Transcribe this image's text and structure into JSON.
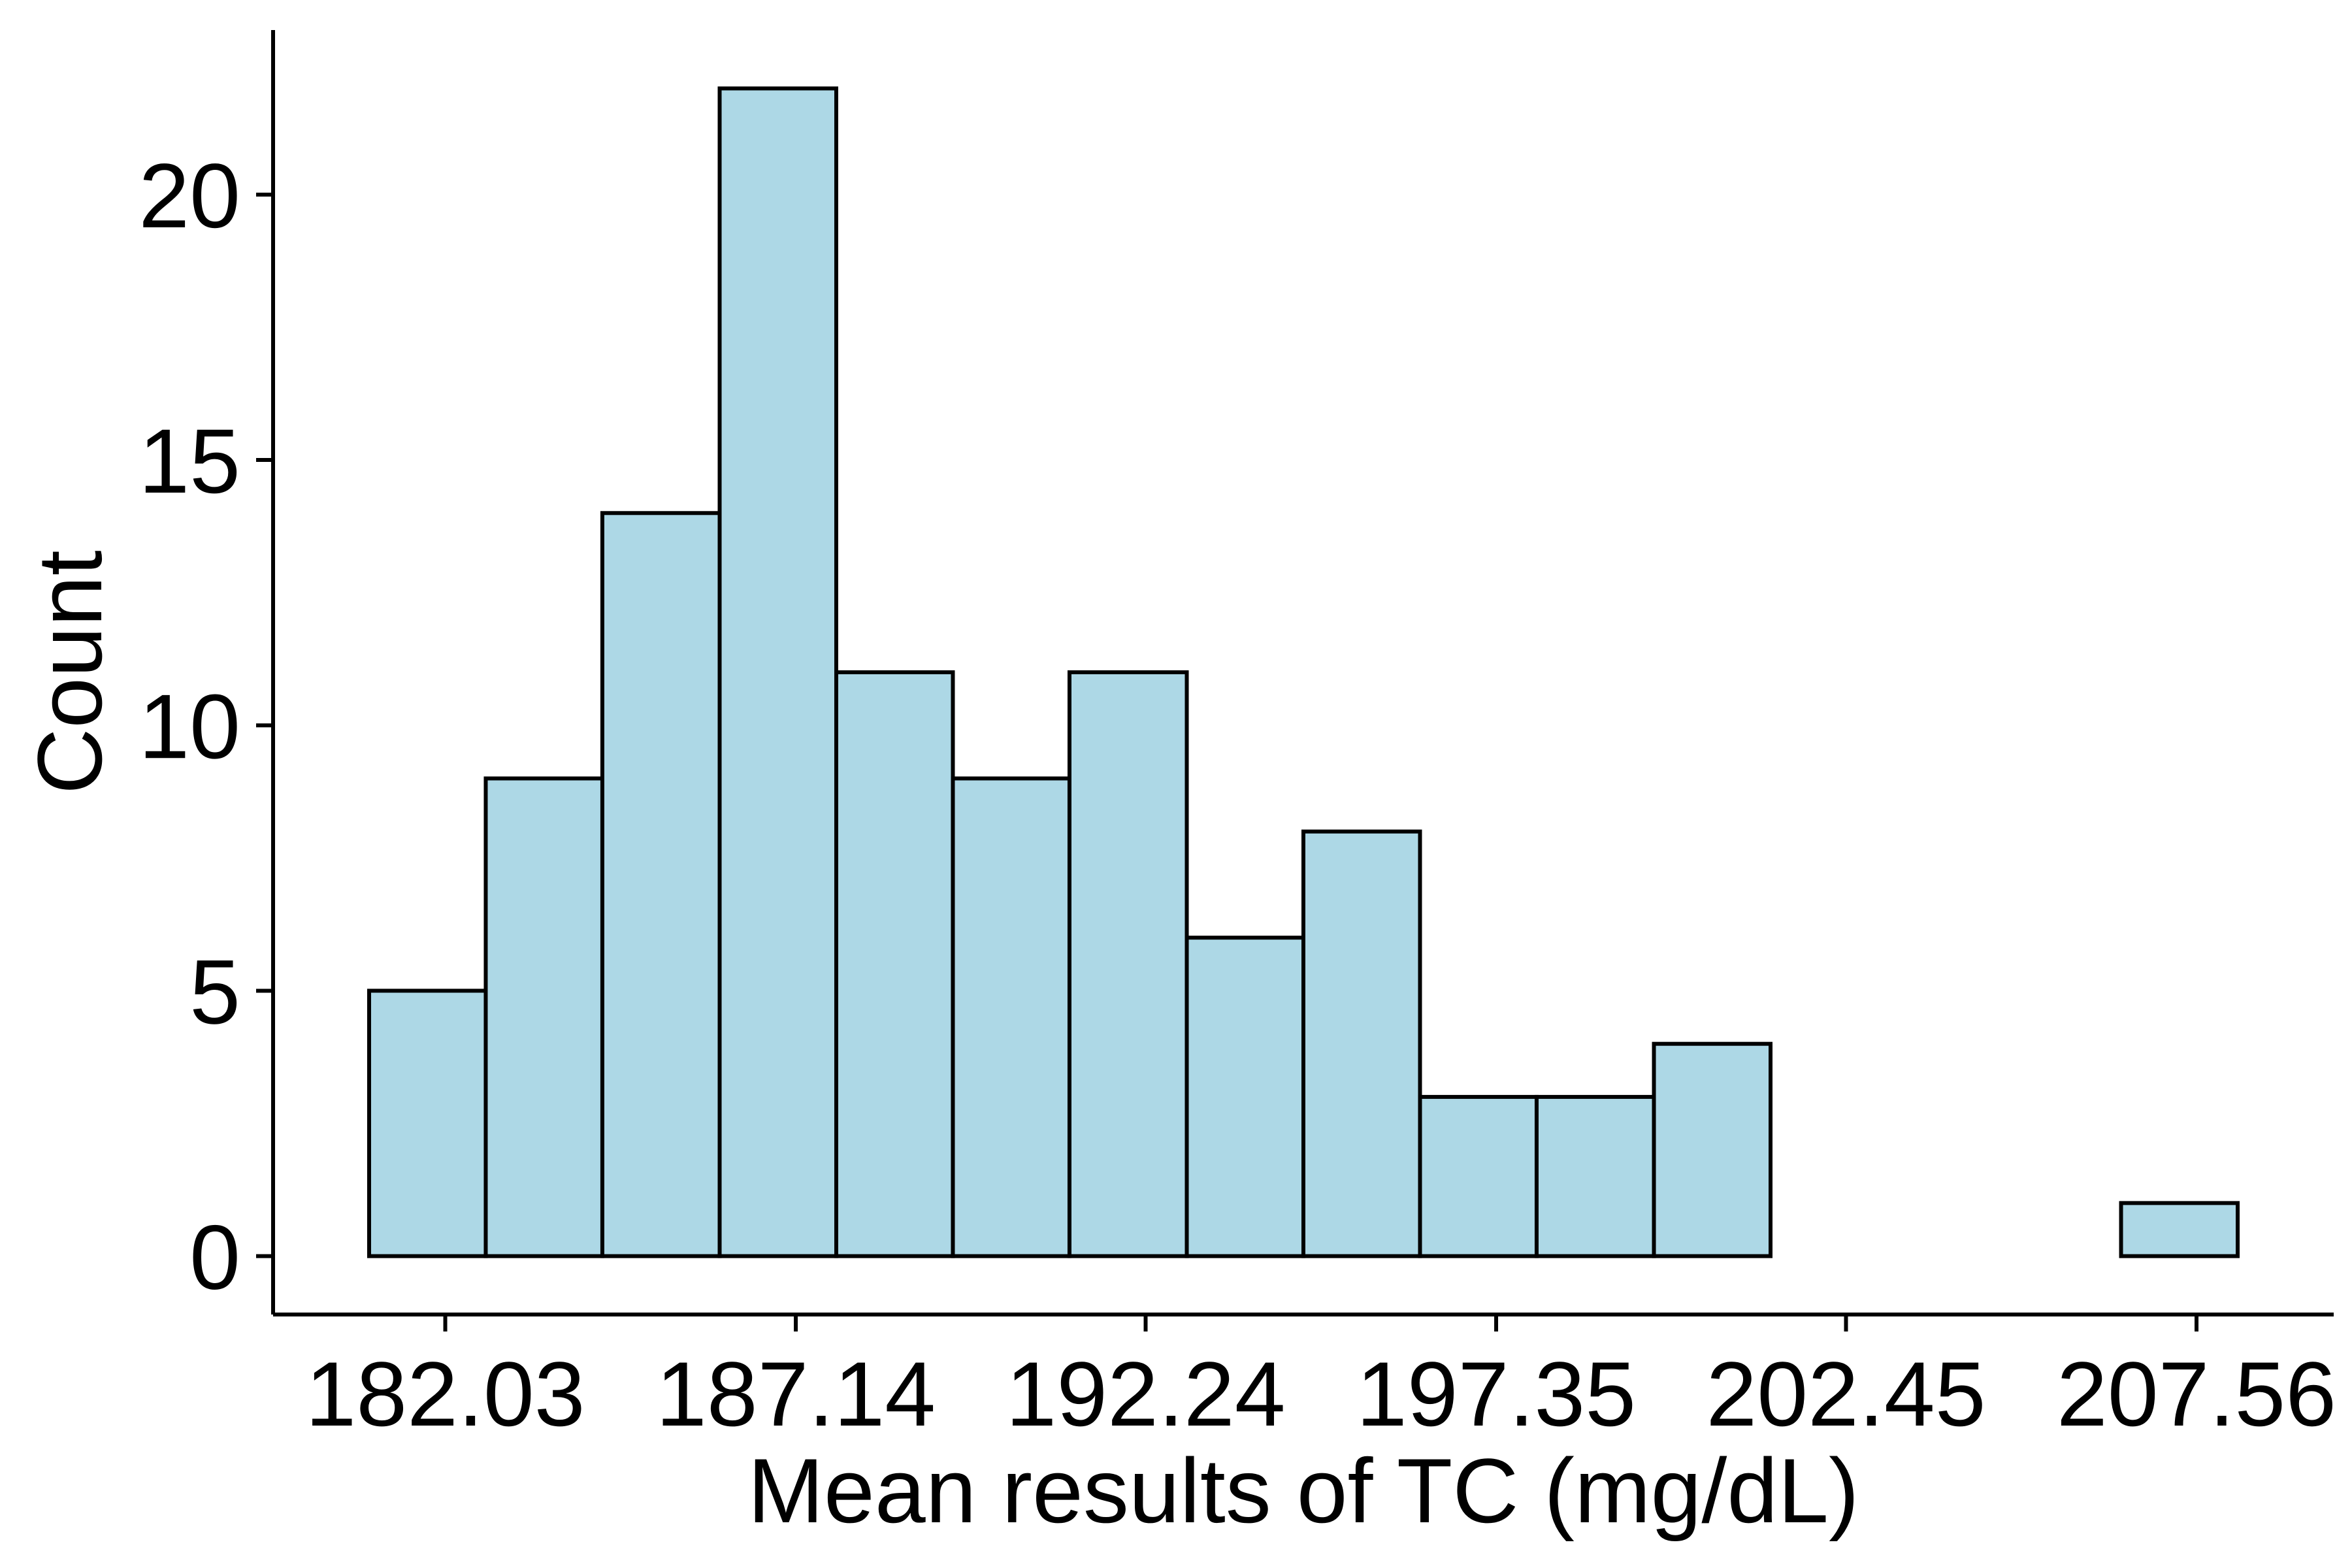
{
  "chart_data": {
    "type": "bar",
    "subtype": "histogram",
    "xlabel": "Mean results of TC (mg/dL)",
    "ylabel": "Count",
    "bin_width": 1.7024,
    "bins": [
      {
        "start": 180.92,
        "end": 182.62,
        "count": 5
      },
      {
        "start": 182.62,
        "end": 184.32,
        "count": 9
      },
      {
        "start": 184.32,
        "end": 186.03,
        "count": 14
      },
      {
        "start": 186.03,
        "end": 187.73,
        "count": 22
      },
      {
        "start": 187.73,
        "end": 189.43,
        "count": 11
      },
      {
        "start": 189.43,
        "end": 191.13,
        "count": 9
      },
      {
        "start": 191.13,
        "end": 192.84,
        "count": 11
      },
      {
        "start": 192.84,
        "end": 194.54,
        "count": 6
      },
      {
        "start": 194.54,
        "end": 196.24,
        "count": 8
      },
      {
        "start": 196.24,
        "end": 197.94,
        "count": 3
      },
      {
        "start": 197.94,
        "end": 199.65,
        "count": 3
      },
      {
        "start": 199.65,
        "end": 201.35,
        "count": 4
      },
      {
        "start": 201.35,
        "end": 203.05,
        "count": 0
      },
      {
        "start": 203.05,
        "end": 204.75,
        "count": 0
      },
      {
        "start": 204.75,
        "end": 206.46,
        "count": 0
      },
      {
        "start": 206.46,
        "end": 208.16,
        "count": 1
      }
    ],
    "x_ticks": [
      182.03,
      187.14,
      192.24,
      197.35,
      202.45,
      207.56
    ],
    "x_tick_labels": [
      "182.03",
      "187.14",
      "192.24",
      "197.35",
      "202.45",
      "207.56"
    ],
    "y_ticks": [
      0,
      5,
      10,
      15,
      20
    ],
    "y_tick_labels": [
      "0",
      "5",
      "10",
      "15",
      "20"
    ],
    "xlim": [
      179.52,
      209.56
    ],
    "ylim": [
      -1.1,
      23.1
    ],
    "grid": false,
    "legend": "none",
    "colors": {
      "bar_fill": "#add8e6",
      "bar_stroke": "#000000",
      "axis": "#000000",
      "background": "#ffffff"
    }
  }
}
